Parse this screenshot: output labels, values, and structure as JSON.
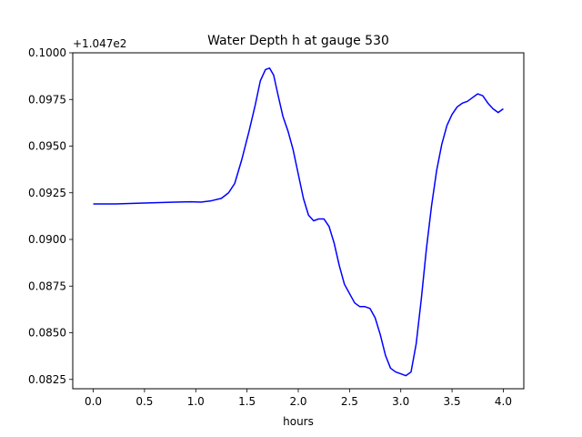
{
  "chart_data": {
    "type": "line",
    "title": "Water Depth h at gauge 530",
    "xlabel": "hours",
    "ylabel": "",
    "offset_label": "+1.047e2",
    "xlim": [
      -0.2,
      4.2
    ],
    "ylim": [
      0.082,
      0.1
    ],
    "grid": false,
    "xticks": [
      0.0,
      0.5,
      1.0,
      1.5,
      2.0,
      2.5,
      3.0,
      3.5,
      4.0
    ],
    "xtick_labels": [
      "0.0",
      "0.5",
      "1.0",
      "1.5",
      "2.0",
      "2.5",
      "3.0",
      "3.5",
      "4.0"
    ],
    "yticks": [
      0.0825,
      0.085,
      0.0875,
      0.09,
      0.0925,
      0.095,
      0.0975,
      0.1
    ],
    "ytick_labels": [
      "0.0825",
      "0.0850",
      "0.0875",
      "0.0900",
      "0.0925",
      "0.0950",
      "0.0975",
      "0.1000"
    ],
    "series": [
      {
        "name": "",
        "color": "#0000ff",
        "x": [
          0.0,
          0.2,
          0.5,
          0.8,
          0.95,
          1.05,
          1.15,
          1.25,
          1.32,
          1.38,
          1.45,
          1.52,
          1.58,
          1.63,
          1.68,
          1.72,
          1.76,
          1.8,
          1.85,
          1.9,
          1.95,
          2.0,
          2.05,
          2.1,
          2.15,
          2.2,
          2.25,
          2.3,
          2.35,
          2.4,
          2.45,
          2.5,
          2.55,
          2.6,
          2.65,
          2.7,
          2.75,
          2.8,
          2.85,
          2.9,
          2.95,
          3.0,
          3.05,
          3.1,
          3.15,
          3.2,
          3.25,
          3.3,
          3.35,
          3.4,
          3.45,
          3.5,
          3.55,
          3.6,
          3.65,
          3.7,
          3.75,
          3.8,
          3.85,
          3.9,
          3.95,
          4.0
        ],
        "y": [
          0.0919,
          0.0919,
          0.09195,
          0.092,
          0.09202,
          0.092,
          0.09207,
          0.0922,
          0.0925,
          0.093,
          0.0943,
          0.0958,
          0.0972,
          0.0985,
          0.0991,
          0.09918,
          0.0988,
          0.0978,
          0.0966,
          0.0958,
          0.0948,
          0.0935,
          0.0922,
          0.0913,
          0.091,
          0.0911,
          0.0911,
          0.0907,
          0.0898,
          0.0886,
          0.0876,
          0.0871,
          0.0866,
          0.0864,
          0.0864,
          0.0863,
          0.0858,
          0.0849,
          0.0838,
          0.0831,
          0.0829,
          0.0828,
          0.0827,
          0.0829,
          0.0844,
          0.0868,
          0.0895,
          0.0918,
          0.0937,
          0.0951,
          0.0961,
          0.0967,
          0.0971,
          0.0973,
          0.0974,
          0.0976,
          0.0978,
          0.0977,
          0.0973,
          0.097,
          0.0968,
          0.097
        ]
      }
    ]
  }
}
